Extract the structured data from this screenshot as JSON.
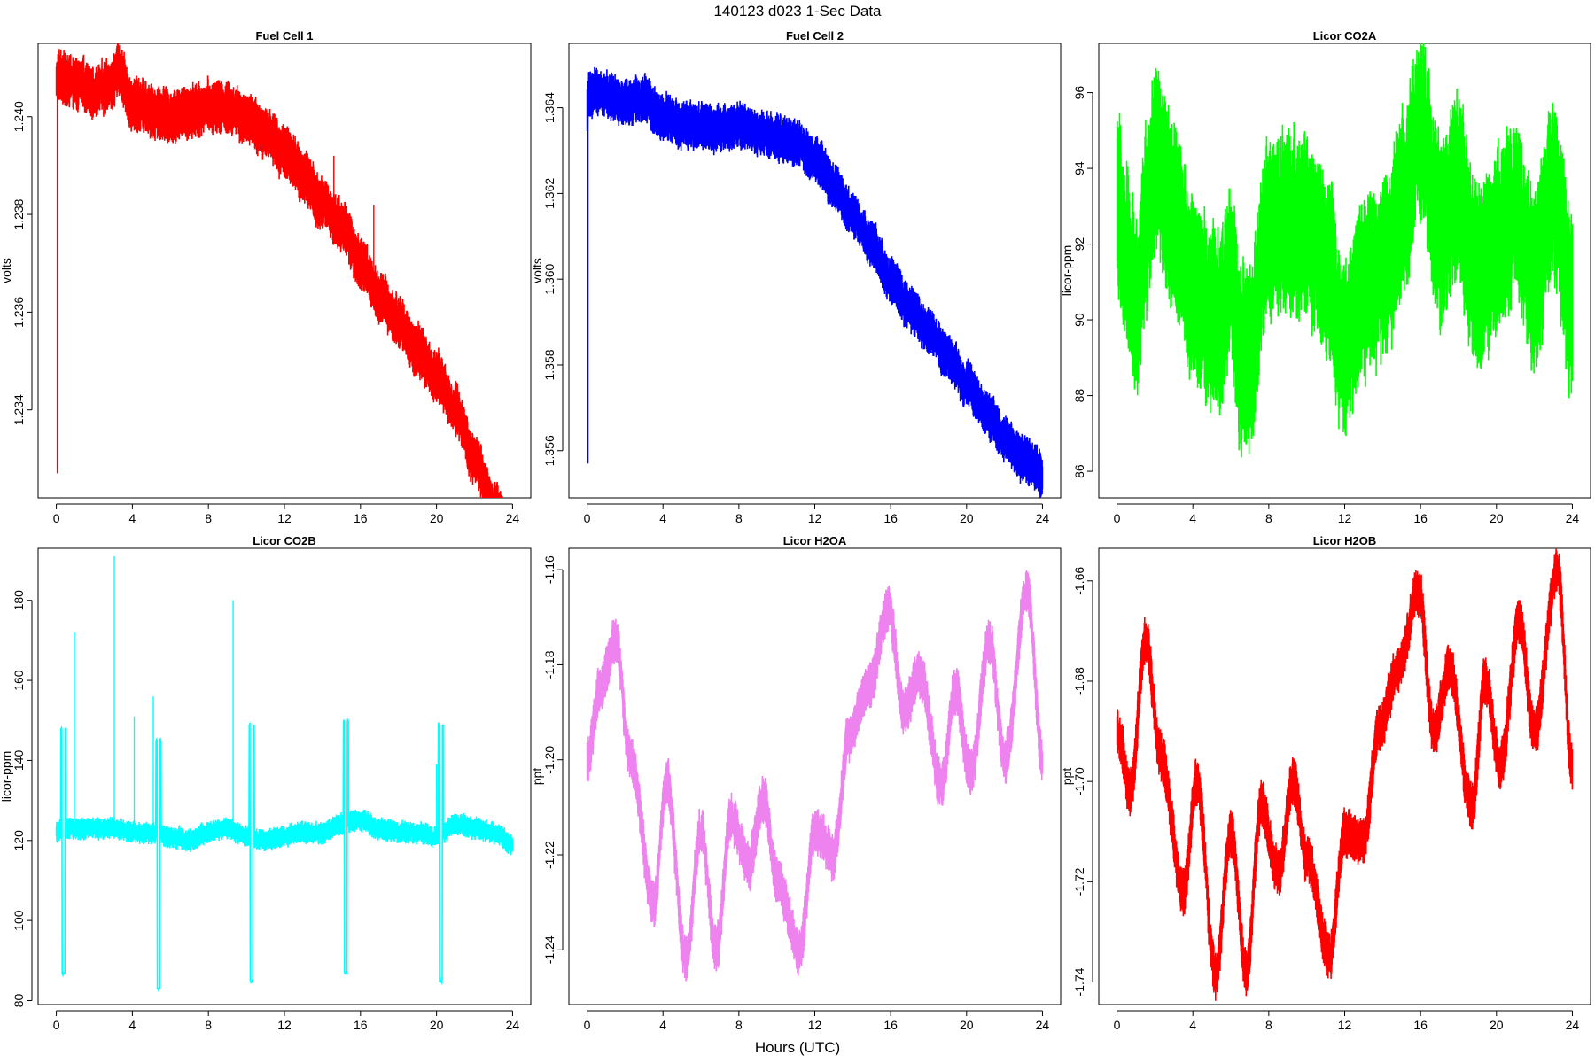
{
  "figure": {
    "title": "140123   d023   1-Sec Data",
    "xlabel": "Hours (UTC)"
  },
  "chart_data": [
    {
      "type": "line",
      "title": "Fuel Cell 1",
      "ylabel": "volts",
      "color": "#ff0000",
      "xlim": [
        0,
        24
      ],
      "ylim": [
        1.2322,
        1.2415
      ],
      "xticks": [
        0,
        4,
        8,
        12,
        16,
        20,
        24
      ],
      "yticks": [
        1.234,
        1.236,
        1.238,
        1.24
      ],
      "ytick_labels": [
        "1.234",
        "1.236",
        "1.238",
        "1.240"
      ],
      "band": 0.00045,
      "noise": 0.00018,
      "spikes": [
        [
          0.05,
          1.2327
        ],
        [
          14.6,
          1.2392
        ],
        [
          16.7,
          1.2382
        ]
      ],
      "x": [
        0,
        0.1,
        0.5,
        1,
        2,
        3,
        3.2,
        4,
        5,
        6,
        7,
        8,
        9,
        10,
        11,
        12,
        13,
        14,
        15,
        16,
        17,
        18,
        19,
        20,
        21,
        22,
        23,
        24
      ],
      "y": [
        1.2407,
        1.2408,
        1.2408,
        1.2407,
        1.2405,
        1.2407,
        1.241,
        1.2403,
        1.2401,
        1.24,
        1.2401,
        1.2402,
        1.2402,
        1.24,
        1.2397,
        1.2393,
        1.2388,
        1.2382,
        1.2378,
        1.237,
        1.2363,
        1.2358,
        1.2352,
        1.2347,
        1.234,
        1.233,
        1.232,
        1.2313
      ]
    },
    {
      "type": "line",
      "title": "Fuel Cell 2",
      "ylabel": "volts",
      "color": "#0000ff",
      "xlim": [
        0,
        24
      ],
      "ylim": [
        1.3549,
        1.3655
      ],
      "xticks": [
        0,
        4,
        8,
        12,
        16,
        20,
        24
      ],
      "yticks": [
        1.356,
        1.358,
        1.36,
        1.362,
        1.364
      ],
      "ytick_labels": [
        "1.356",
        "1.358",
        "1.360",
        "1.362",
        "1.364"
      ],
      "band": 0.00045,
      "noise": 0.00018,
      "spikes": [
        [
          0.05,
          1.3557
        ]
      ],
      "x": [
        0,
        0.1,
        0.5,
        1,
        2,
        3,
        4,
        5,
        6,
        7,
        8,
        9,
        10,
        11,
        12,
        13,
        14,
        15,
        16,
        17,
        18,
        19,
        20,
        21,
        22,
        23,
        24
      ],
      "y": [
        1.364,
        1.3643,
        1.3644,
        1.3643,
        1.3641,
        1.3642,
        1.3638,
        1.3636,
        1.3636,
        1.3635,
        1.3636,
        1.3634,
        1.3633,
        1.3632,
        1.3628,
        1.3622,
        1.3615,
        1.3608,
        1.36,
        1.3593,
        1.3588,
        1.3582,
        1.3576,
        1.3569,
        1.3563,
        1.3558,
        1.3555
      ]
    },
    {
      "type": "line",
      "title": "Licor CO2A",
      "ylabel": "licor-ppm",
      "color": "#00ff00",
      "xlim": [
        0,
        24
      ],
      "ylim": [
        85.3,
        97.3
      ],
      "xticks": [
        0,
        4,
        8,
        12,
        16,
        20,
        24
      ],
      "yticks": [
        86,
        88,
        90,
        92,
        94,
        96
      ],
      "ytick_labels": [
        "86",
        "88",
        "90",
        "92",
        "94",
        "96"
      ],
      "band": 2.0,
      "noise": 0.8,
      "spikes": [],
      "x": [
        0,
        0.5,
        1,
        1.5,
        2,
        3,
        4,
        5,
        5.5,
        6,
        6.5,
        7,
        8,
        9,
        10,
        11,
        12,
        13,
        14,
        15,
        16,
        17,
        18,
        19,
        20,
        21,
        22,
        23,
        24
      ],
      "y": [
        93.2,
        91.5,
        90.3,
        92.5,
        94.4,
        92.5,
        91.0,
        90.0,
        89.8,
        91.5,
        88.9,
        89.0,
        92.5,
        92.5,
        92.5,
        91.5,
        89.2,
        91.0,
        91.2,
        93.0,
        95.0,
        92.5,
        93.3,
        91.0,
        92.0,
        93.0,
        91.0,
        93.5,
        90.5
      ]
    },
    {
      "type": "line",
      "title": "Licor CO2B",
      "ylabel": "licor-ppm",
      "color": "#00ffff",
      "xlim": [
        0,
        24
      ],
      "ylim": [
        79,
        193
      ],
      "xticks": [
        0,
        4,
        8,
        12,
        16,
        20,
        24
      ],
      "yticks": [
        80,
        100,
        120,
        140,
        160,
        180
      ],
      "ytick_labels": [
        "80",
        "100",
        "120",
        "140",
        "160",
        "180"
      ],
      "band": 2.2,
      "noise": 1.0,
      "calib": [
        [
          0.3,
          0.45,
          148,
          87
        ],
        [
          5.3,
          5.45,
          145,
          83
        ],
        [
          10.2,
          10.35,
          149,
          85
        ],
        [
          15.15,
          15.3,
          150,
          87
        ],
        [
          20.15,
          20.3,
          149,
          85
        ]
      ],
      "spikes": [
        [
          0.95,
          172
        ],
        [
          3.05,
          191
        ],
        [
          4.1,
          151
        ],
        [
          5.1,
          156
        ],
        [
          9.3,
          180
        ],
        [
          20.0,
          139
        ]
      ],
      "x": [
        0,
        1,
        2,
        3,
        4,
        5,
        6,
        7,
        8,
        9,
        10,
        11,
        12,
        13,
        14,
        15,
        16,
        17,
        18,
        19,
        20,
        21,
        22,
        23,
        24
      ],
      "y": [
        122,
        123,
        123,
        123,
        122,
        122,
        121,
        120,
        122,
        123,
        121,
        120,
        121,
        122,
        122,
        124,
        125,
        123,
        122,
        122,
        121,
        124,
        123,
        122,
        119
      ]
    },
    {
      "type": "line",
      "title": "Licor H2OA",
      "ylabel": "ppt",
      "color": "#ee82ee",
      "xlim": [
        0,
        24
      ],
      "ylim": [
        -1.2515,
        -1.1555
      ],
      "xticks": [
        0,
        4,
        8,
        12,
        16,
        20,
        24
      ],
      "yticks": [
        -1.24,
        -1.22,
        -1.2,
        -1.18,
        -1.16
      ],
      "ytick_labels": [
        "-1.24",
        "-1.22",
        "-1.20",
        "-1.18",
        "-1.16"
      ],
      "band": 0.004,
      "noise": 0.002,
      "spikes": [],
      "x": [
        0,
        0.7,
        1.5,
        2.3,
        3.5,
        4.2,
        5.2,
        6.0,
        6.8,
        7.6,
        8.5,
        9.3,
        10.0,
        11.2,
        12.0,
        13.0,
        13.8,
        14.8,
        15.9,
        16.7,
        17.5,
        18.7,
        19.4,
        20.2,
        21.2,
        22.0,
        23.2,
        24.0
      ],
      "y": [
        -1.2,
        -1.185,
        -1.175,
        -1.2,
        -1.23,
        -1.205,
        -1.242,
        -1.215,
        -1.24,
        -1.212,
        -1.222,
        -1.208,
        -1.225,
        -1.24,
        -1.215,
        -1.22,
        -1.195,
        -1.185,
        -1.168,
        -1.19,
        -1.182,
        -1.205,
        -1.185,
        -1.203,
        -1.175,
        -1.2,
        -1.164,
        -1.2
      ]
    },
    {
      "type": "line",
      "title": "Licor H2OB",
      "ylabel": "ppt",
      "color": "#ff0000",
      "xlim": [
        0,
        24
      ],
      "ylim": [
        -1.7445,
        -1.6535
      ],
      "xticks": [
        0,
        4,
        8,
        12,
        16,
        20,
        24
      ],
      "yticks": [
        -1.74,
        -1.72,
        -1.7,
        -1.68,
        -1.66
      ],
      "ytick_labels": [
        "-1.74",
        "-1.72",
        "-1.70",
        "-1.68",
        "-1.66"
      ],
      "band": 0.004,
      "noise": 0.0018,
      "spikes": [],
      "x": [
        0,
        0.7,
        1.5,
        2.3,
        3.5,
        4.2,
        5.2,
        6.0,
        6.8,
        7.6,
        8.5,
        9.3,
        10.0,
        11.2,
        12.0,
        13.0,
        13.8,
        14.8,
        15.9,
        16.7,
        17.5,
        18.7,
        19.4,
        20.2,
        21.2,
        22.0,
        23.2,
        24.0
      ],
      "y": [
        -1.69,
        -1.702,
        -1.672,
        -1.695,
        -1.722,
        -1.7,
        -1.738,
        -1.71,
        -1.738,
        -1.705,
        -1.718,
        -1.7,
        -1.715,
        -1.735,
        -1.71,
        -1.712,
        -1.69,
        -1.678,
        -1.662,
        -1.69,
        -1.678,
        -1.705,
        -1.68,
        -1.697,
        -1.668,
        -1.69,
        -1.658,
        -1.697
      ]
    }
  ]
}
